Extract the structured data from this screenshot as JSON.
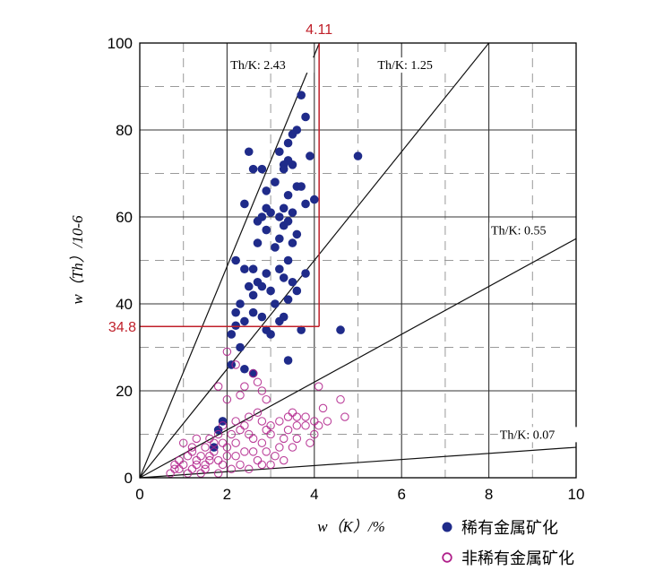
{
  "chart_data": {
    "type": "scatter",
    "xlabel": "w（K）/%",
    "ylabel": "w（Th）/10-6",
    "xlim": [
      0,
      10
    ],
    "ylim": [
      0,
      100
    ],
    "x_ticks": [
      "0",
      "2",
      "4",
      "6",
      "8",
      "10"
    ],
    "y_ticks": [
      "0",
      "20",
      "40",
      "60",
      "80",
      "100"
    ],
    "grid": true,
    "legend_position": "bottom-right",
    "ratio_lines": [
      {
        "label": "Th/K: 2.43",
        "slope": 24.3
      },
      {
        "label": "Th/K: 1.25",
        "slope": 12.5
      },
      {
        "label": "Th/K: 0.55",
        "slope": 5.5
      },
      {
        "label": "Th/K: 0.07",
        "slope": 0.7
      }
    ],
    "threshold_lines": {
      "x": {
        "label": "4.11",
        "value": 4.11
      },
      "y": {
        "label": "34.8",
        "value": 34.8
      },
      "color": "#c0202a"
    },
    "series": [
      {
        "name": "稀有金属矿化",
        "marker": "filled-circle",
        "color": "#1f2b8a",
        "points": [
          [
            3.7,
            88
          ],
          [
            3.8,
            83
          ],
          [
            3.6,
            80
          ],
          [
            3.5,
            79
          ],
          [
            3.4,
            77
          ],
          [
            2.5,
            75
          ],
          [
            3.2,
            75
          ],
          [
            3.4,
            73
          ],
          [
            3.3,
            72
          ],
          [
            3.5,
            72
          ],
          [
            2.6,
            71
          ],
          [
            2.8,
            71
          ],
          [
            3.3,
            71
          ],
          [
            3.9,
            74
          ],
          [
            5.0,
            74
          ],
          [
            3.1,
            68
          ],
          [
            3.6,
            67
          ],
          [
            3.7,
            67
          ],
          [
            2.9,
            66
          ],
          [
            3.4,
            65
          ],
          [
            4.0,
            64
          ],
          [
            3.8,
            63
          ],
          [
            2.4,
            63
          ],
          [
            2.9,
            62
          ],
          [
            3.3,
            62
          ],
          [
            3.0,
            61
          ],
          [
            3.5,
            61
          ],
          [
            2.8,
            60
          ],
          [
            3.2,
            60
          ],
          [
            2.7,
            59
          ],
          [
            3.4,
            59
          ],
          [
            3.3,
            58
          ],
          [
            2.9,
            57
          ],
          [
            3.6,
            56
          ],
          [
            3.2,
            55
          ],
          [
            2.7,
            54
          ],
          [
            3.5,
            54
          ],
          [
            3.1,
            53
          ],
          [
            2.2,
            50
          ],
          [
            3.4,
            50
          ],
          [
            2.4,
            48
          ],
          [
            2.6,
            48
          ],
          [
            3.2,
            48
          ],
          [
            2.9,
            47
          ],
          [
            3.8,
            47
          ],
          [
            3.3,
            46
          ],
          [
            2.7,
            45
          ],
          [
            3.5,
            45
          ],
          [
            2.5,
            44
          ],
          [
            2.8,
            44
          ],
          [
            3.0,
            43
          ],
          [
            3.6,
            43
          ],
          [
            2.6,
            42
          ],
          [
            3.4,
            41
          ],
          [
            2.3,
            40
          ],
          [
            3.1,
            40
          ],
          [
            2.2,
            38
          ],
          [
            2.6,
            38
          ],
          [
            2.8,
            37
          ],
          [
            3.3,
            37
          ],
          [
            2.4,
            36
          ],
          [
            3.2,
            36
          ],
          [
            2.2,
            35
          ],
          [
            2.9,
            34
          ],
          [
            3.7,
            34
          ],
          [
            4.6,
            34
          ],
          [
            2.1,
            33
          ],
          [
            3.0,
            33
          ],
          [
            2.3,
            30
          ],
          [
            3.4,
            27
          ],
          [
            2.1,
            26
          ],
          [
            2.4,
            25
          ],
          [
            2.6,
            24
          ],
          [
            1.9,
            13
          ],
          [
            1.8,
            11
          ],
          [
            1.7,
            7
          ]
        ]
      },
      {
        "name": "非稀有金属矿化",
        "marker": "open-circle",
        "color": "#b0208a",
        "points": [
          [
            2.0,
            29
          ],
          [
            2.2,
            26
          ],
          [
            2.6,
            24
          ],
          [
            2.7,
            22
          ],
          [
            1.8,
            21
          ],
          [
            2.4,
            21
          ],
          [
            2.8,
            20
          ],
          [
            2.3,
            19
          ],
          [
            2.0,
            18
          ],
          [
            2.9,
            18
          ],
          [
            4.1,
            21
          ],
          [
            4.6,
            18
          ],
          [
            4.2,
            16
          ],
          [
            4.7,
            14
          ],
          [
            4.0,
            13
          ],
          [
            4.1,
            12
          ],
          [
            3.8,
            12
          ],
          [
            3.6,
            14
          ],
          [
            3.5,
            15
          ],
          [
            3.2,
            13
          ],
          [
            3.0,
            12
          ],
          [
            3.4,
            11
          ],
          [
            2.7,
            15
          ],
          [
            2.5,
            14
          ],
          [
            2.2,
            13
          ],
          [
            2.8,
            13
          ],
          [
            1.9,
            12
          ],
          [
            2.3,
            11
          ],
          [
            1.8,
            10
          ],
          [
            1.6,
            9
          ],
          [
            1.3,
            9
          ],
          [
            1.0,
            8
          ],
          [
            1.5,
            7
          ],
          [
            1.2,
            7
          ],
          [
            1.9,
            8
          ],
          [
            2.5,
            10
          ],
          [
            3.0,
            10
          ],
          [
            3.3,
            9
          ],
          [
            3.6,
            9
          ],
          [
            4.0,
            10
          ],
          [
            3.9,
            8
          ],
          [
            2.8,
            8
          ],
          [
            2.6,
            9
          ],
          [
            2.2,
            8
          ],
          [
            1.7,
            6
          ],
          [
            1.4,
            5
          ],
          [
            1.1,
            5
          ],
          [
            0.9,
            4
          ],
          [
            0.8,
            3
          ],
          [
            1.3,
            4
          ],
          [
            1.6,
            4
          ],
          [
            2.0,
            5
          ],
          [
            2.4,
            6
          ],
          [
            2.9,
            6
          ],
          [
            3.2,
            7
          ],
          [
            3.5,
            7
          ],
          [
            3.1,
            5
          ],
          [
            2.7,
            4
          ],
          [
            2.3,
            3
          ],
          [
            1.9,
            3
          ],
          [
            1.5,
            2
          ],
          [
            1.2,
            2
          ],
          [
            0.9,
            2
          ],
          [
            0.7,
            1
          ],
          [
            1.1,
            1
          ],
          [
            1.4,
            1
          ],
          [
            1.8,
            1
          ],
          [
            2.1,
            2
          ],
          [
            2.5,
            2
          ],
          [
            2.8,
            3
          ],
          [
            3.3,
            4
          ],
          [
            2.0,
            7
          ],
          [
            1.6,
            5
          ],
          [
            1.0,
            3
          ],
          [
            2.2,
            5
          ],
          [
            2.6,
            6
          ],
          [
            1.8,
            4
          ],
          [
            1.3,
            3
          ],
          [
            0.8,
            2
          ],
          [
            3.0,
            3
          ],
          [
            3.6,
            12
          ],
          [
            3.8,
            14
          ],
          [
            4.3,
            13
          ],
          [
            3.4,
            14
          ],
          [
            2.4,
            12
          ],
          [
            2.1,
            10
          ],
          [
            1.7,
            8
          ],
          [
            1.2,
            6
          ],
          [
            1.5,
            3
          ],
          [
            2.9,
            11
          ]
        ]
      }
    ]
  }
}
